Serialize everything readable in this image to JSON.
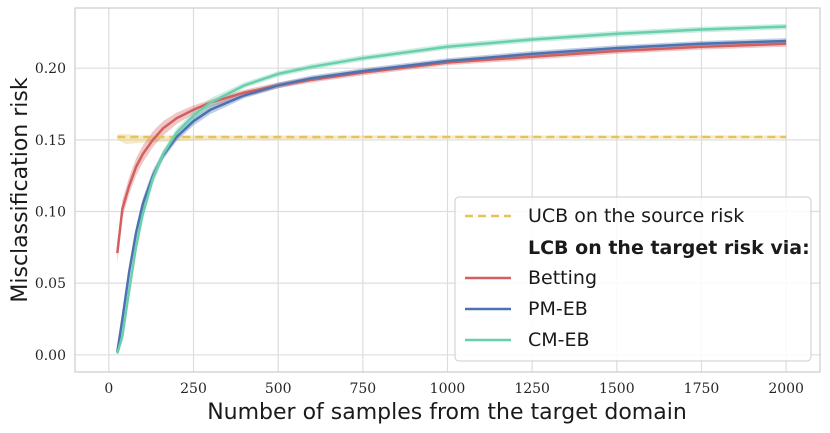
{
  "chart_data": {
    "type": "line",
    "title": "",
    "xlabel": "Number of samples from the target domain",
    "ylabel": "Misclassification risk",
    "xlim": [
      -100,
      2100
    ],
    "ylim": [
      -0.012,
      0.242
    ],
    "xticks": [
      0,
      250,
      500,
      750,
      1000,
      1250,
      1500,
      1750,
      2000
    ],
    "xtick_labels": [
      "0",
      "250",
      "500",
      "750",
      "1000",
      "1250",
      "1500",
      "1750",
      "2000"
    ],
    "yticks": [
      0.0,
      0.05,
      0.1,
      0.15,
      0.2
    ],
    "ytick_labels": [
      "0.00",
      "0.05",
      "0.10",
      "0.15",
      "0.20"
    ],
    "grid": true,
    "legend_position": "lower-right",
    "legend_heading": "LCB on the target risk via:",
    "series": [
      {
        "name": "UCB on the source risk",
        "color": "#e5c35a",
        "style": "dashed",
        "x": [
          25,
          50,
          100,
          200,
          300,
          500,
          750,
          1000,
          1500,
          2000
        ],
        "values": [
          0.152,
          0.152,
          0.152,
          0.152,
          0.152,
          0.152,
          0.152,
          0.152,
          0.152,
          0.152
        ],
        "band_lower": [
          0.15,
          0.147,
          0.148,
          0.149,
          0.15,
          0.15,
          0.151,
          0.151,
          0.151,
          0.151
        ],
        "band_upper": [
          0.154,
          0.154,
          0.153,
          0.153,
          0.153,
          0.153,
          0.153,
          0.153,
          0.153,
          0.153
        ]
      },
      {
        "name": "Betting",
        "color": "#d45f5f",
        "style": "solid",
        "x": [
          25,
          40,
          60,
          80,
          100,
          130,
          160,
          200,
          250,
          300,
          400,
          500,
          600,
          750,
          1000,
          1250,
          1500,
          1750,
          2000
        ],
        "values": [
          0.071,
          0.102,
          0.118,
          0.131,
          0.14,
          0.15,
          0.158,
          0.165,
          0.171,
          0.176,
          0.183,
          0.188,
          0.192,
          0.197,
          0.204,
          0.208,
          0.212,
          0.215,
          0.217
        ],
        "band_lower": [
          0.064,
          0.096,
          0.112,
          0.125,
          0.134,
          0.145,
          0.153,
          0.161,
          0.168,
          0.173,
          0.18,
          0.186,
          0.19,
          0.195,
          0.202,
          0.206,
          0.21,
          0.213,
          0.215
        ],
        "band_upper": [
          0.078,
          0.108,
          0.124,
          0.137,
          0.146,
          0.156,
          0.163,
          0.169,
          0.174,
          0.178,
          0.185,
          0.19,
          0.194,
          0.199,
          0.206,
          0.21,
          0.214,
          0.217,
          0.219
        ]
      },
      {
        "name": "PM-EB",
        "color": "#4c72b0",
        "style": "solid",
        "x": [
          25,
          40,
          60,
          80,
          100,
          130,
          160,
          200,
          250,
          300,
          400,
          500,
          600,
          750,
          1000,
          1250,
          1500,
          1750,
          2000
        ],
        "values": [
          0.002,
          0.025,
          0.058,
          0.085,
          0.105,
          0.125,
          0.139,
          0.152,
          0.163,
          0.171,
          0.181,
          0.188,
          0.193,
          0.198,
          0.205,
          0.21,
          0.214,
          0.217,
          0.219
        ],
        "band_lower": [
          0.0,
          0.021,
          0.054,
          0.081,
          0.101,
          0.121,
          0.136,
          0.149,
          0.16,
          0.168,
          0.179,
          0.186,
          0.191,
          0.196,
          0.203,
          0.208,
          0.212,
          0.215,
          0.217
        ],
        "band_upper": [
          0.004,
          0.029,
          0.062,
          0.089,
          0.109,
          0.129,
          0.142,
          0.155,
          0.166,
          0.174,
          0.183,
          0.19,
          0.195,
          0.2,
          0.207,
          0.212,
          0.216,
          0.219,
          0.221
        ]
      },
      {
        "name": "CM-EB",
        "color": "#6acfad",
        "style": "solid",
        "x": [
          25,
          40,
          60,
          80,
          100,
          130,
          160,
          200,
          250,
          300,
          400,
          500,
          600,
          750,
          1000,
          1250,
          1500,
          1750,
          2000
        ],
        "values": [
          0.001,
          0.013,
          0.045,
          0.075,
          0.098,
          0.123,
          0.14,
          0.155,
          0.167,
          0.176,
          0.188,
          0.196,
          0.201,
          0.207,
          0.215,
          0.22,
          0.224,
          0.227,
          0.229
        ],
        "band_lower": [
          0.0,
          0.009,
          0.041,
          0.071,
          0.094,
          0.119,
          0.137,
          0.152,
          0.164,
          0.173,
          0.186,
          0.194,
          0.199,
          0.205,
          0.213,
          0.218,
          0.222,
          0.225,
          0.227
        ],
        "band_upper": [
          0.003,
          0.017,
          0.049,
          0.079,
          0.102,
          0.127,
          0.143,
          0.158,
          0.17,
          0.179,
          0.19,
          0.198,
          0.203,
          0.209,
          0.217,
          0.222,
          0.226,
          0.229,
          0.231
        ]
      }
    ]
  }
}
